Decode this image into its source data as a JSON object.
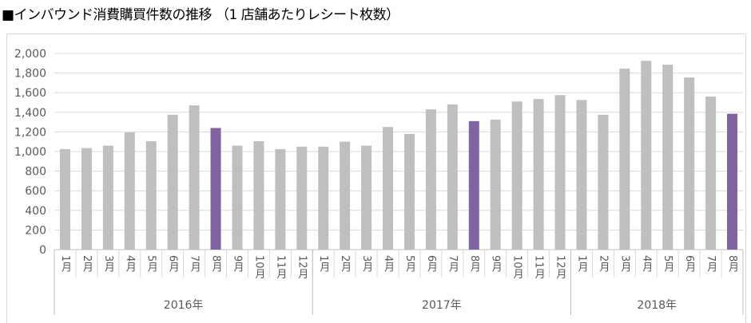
{
  "title": "■インバウンド消費購買件数の推移 （1 店舗あたりレシート枚数）",
  "chart_data": {
    "type": "bar",
    "title": "インバウンド消費購買件数の推移 （1 店舗あたりレシート枚数）",
    "ylim": [
      0,
      2000
    ],
    "yticks": [
      0,
      200,
      400,
      600,
      800,
      1000,
      1200,
      1400,
      1600,
      1800,
      2000
    ],
    "ytick_labels": [
      "0",
      "200",
      "400",
      "600",
      "800",
      "1,000",
      "1,200",
      "1,400",
      "1,600",
      "1,800",
      "2,000"
    ],
    "grid": true,
    "groups": [
      {
        "label": "2016年",
        "categories": [
          "1月",
          "2月",
          "3月",
          "4月",
          "5月",
          "6月",
          "7月",
          "8月",
          "9月",
          "10月",
          "11月",
          "12月"
        ],
        "values": [
          1025,
          1035,
          1060,
          1195,
          1105,
          1375,
          1470,
          1240,
          1060,
          1105,
          1025,
          1050
        ]
      },
      {
        "label": "2017年",
        "categories": [
          "1月",
          "2月",
          "3月",
          "4月",
          "5月",
          "6月",
          "7月",
          "8月",
          "9月",
          "10月",
          "11月",
          "12月"
        ],
        "values": [
          1050,
          1100,
          1060,
          1250,
          1180,
          1430,
          1480,
          1310,
          1325,
          1510,
          1535,
          1575
        ]
      },
      {
        "label": "2018年",
        "categories": [
          "1月",
          "2月",
          "3月",
          "4月",
          "5月",
          "6月",
          "7月",
          "8月"
        ],
        "values": [
          1525,
          1375,
          1845,
          1925,
          1885,
          1755,
          1560,
          1385
        ]
      }
    ],
    "highlight_category": "8月",
    "colors": {
      "default": "#bfbfbf",
      "highlight": "#8064a2"
    }
  }
}
